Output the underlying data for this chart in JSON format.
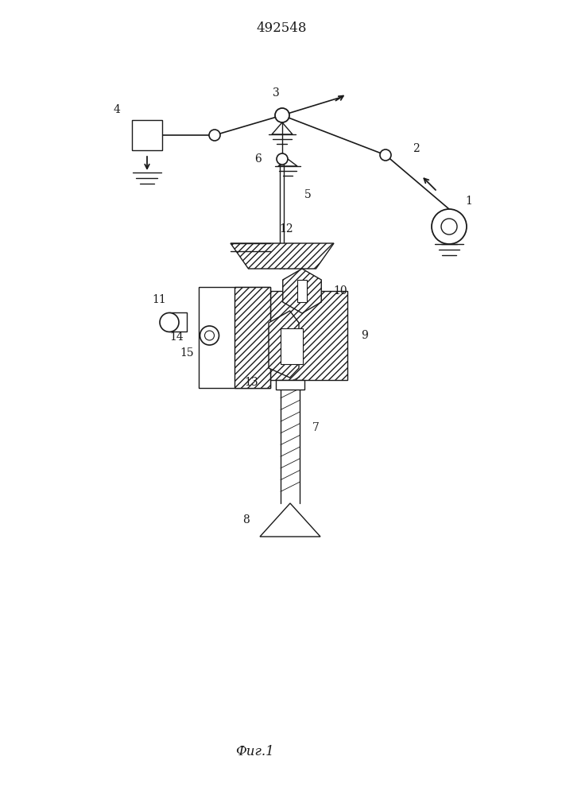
{
  "title": "492548",
  "caption": "Фиг.1",
  "bg_color": "#ffffff",
  "line_color": "#1a1a1a",
  "title_fontsize": 12,
  "caption_fontsize": 12,
  "label_fontsize": 10,
  "fig_width": 7.07,
  "fig_height": 10.0,
  "dpi": 100,
  "xlim": [
    0,
    7.07
  ],
  "ylim": [
    0,
    10.0
  ]
}
